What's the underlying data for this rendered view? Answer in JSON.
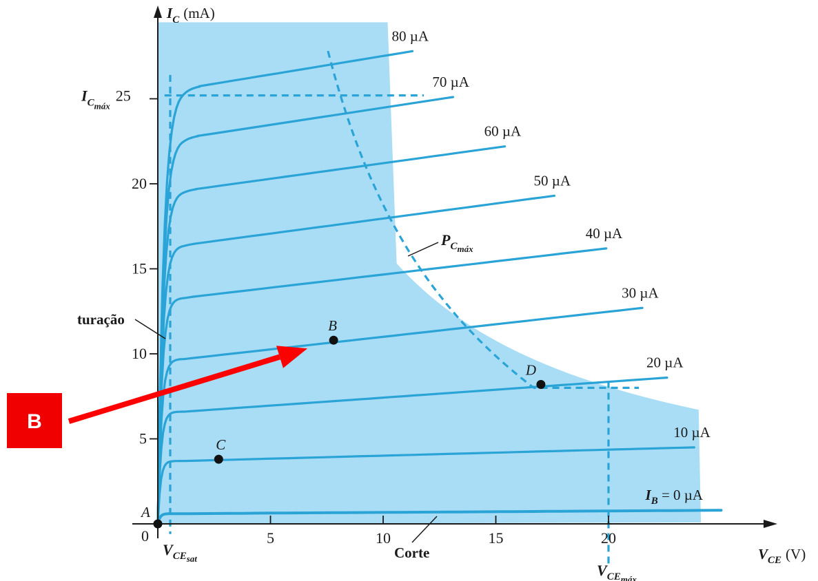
{
  "chart_data": {
    "type": "line",
    "title": "",
    "xlabel": {
      "main": "V",
      "sub": "CE",
      "unit": "(V)"
    },
    "ylabel": {
      "main": "I",
      "sub": "C",
      "unit": "(mA)"
    },
    "xlim": [
      0,
      27
    ],
    "ylim": [
      0,
      29.5
    ],
    "x_ticks": [
      0,
      5,
      10,
      15,
      20
    ],
    "y_ticks": [
      5,
      10,
      15,
      20,
      25
    ],
    "grid": false,
    "origin_label": "0",
    "ic_max": {
      "value": 25.2,
      "label_main": "I",
      "label_sub": "C",
      "label_subsub": "máx",
      "tick_label": "25"
    },
    "vce_max": {
      "value": 20,
      "label_main": "V",
      "label_sub": "CE",
      "label_subsub": "máx",
      "tick_label": "20"
    },
    "vce_sat": {
      "value": 0.55,
      "label_main": "V",
      "label_sub": "CE",
      "label_subsub": "sat"
    },
    "pc_max": {
      "label_main": "P",
      "label_sub": "C",
      "label_subsub": "máx",
      "power": 160
    },
    "regions": {
      "saturation": "turação",
      "cutoff": "Corte"
    },
    "series": [
      {
        "name": "I_B = 0 µA",
        "label_main": "I",
        "label_sub": "B",
        "label_rest": " = 0 µA",
        "ib_uA": 0,
        "sat_current": 0.6,
        "end_current": 0.8,
        "end_vce": 25.0
      },
      {
        "name": "10 µA",
        "label": "10 µA",
        "ib_uA": 10,
        "sat_current": 3.7,
        "end_current": 4.5,
        "end_vce": 23.8
      },
      {
        "name": "20 µA",
        "label": "20 µA",
        "ib_uA": 20,
        "sat_current": 6.6,
        "end_current": 8.6,
        "end_vce": 22.6
      },
      {
        "name": "30 µA",
        "label": "30 µA",
        "ib_uA": 30,
        "sat_current": 9.7,
        "end_current": 12.7,
        "end_vce": 21.5
      },
      {
        "name": "40 µA",
        "label": "40 µA",
        "ib_uA": 40,
        "sat_current": 13.3,
        "end_current": 16.2,
        "end_vce": 19.9
      },
      {
        "name": "50 µA",
        "label": "50 µA",
        "ib_uA": 50,
        "sat_current": 16.4,
        "end_current": 19.3,
        "end_vce": 17.6
      },
      {
        "name": "60 µA",
        "label": "60 µA",
        "ib_uA": 60,
        "sat_current": 19.6,
        "end_current": 22.2,
        "end_vce": 15.4
      },
      {
        "name": "70 µA",
        "label": "70 µA",
        "ib_uA": 70,
        "sat_current": 22.7,
        "end_current": 25.1,
        "end_vce": 13.1
      },
      {
        "name": "80 µA",
        "label": "80 µA",
        "ib_uA": 80,
        "sat_current": 25.6,
        "end_current": 27.8,
        "end_vce": 11.3
      }
    ],
    "points": [
      {
        "label": "A",
        "x": 0,
        "y": 0
      },
      {
        "label": "B",
        "x": 7.8,
        "y": 10.8
      },
      {
        "label": "C",
        "x": 2.7,
        "y": 3.8
      },
      {
        "label": "D",
        "x": 17.0,
        "y": 8.2
      }
    ],
    "colors": {
      "curve": "#2aa3d6",
      "region": "#a8ddf5",
      "axis": "#1a1a1a",
      "points": "#111111",
      "arrow": "#ff0000",
      "marker_box": "#f00000"
    }
  },
  "annotation": {
    "marker_text": "B",
    "points_to": "B"
  }
}
